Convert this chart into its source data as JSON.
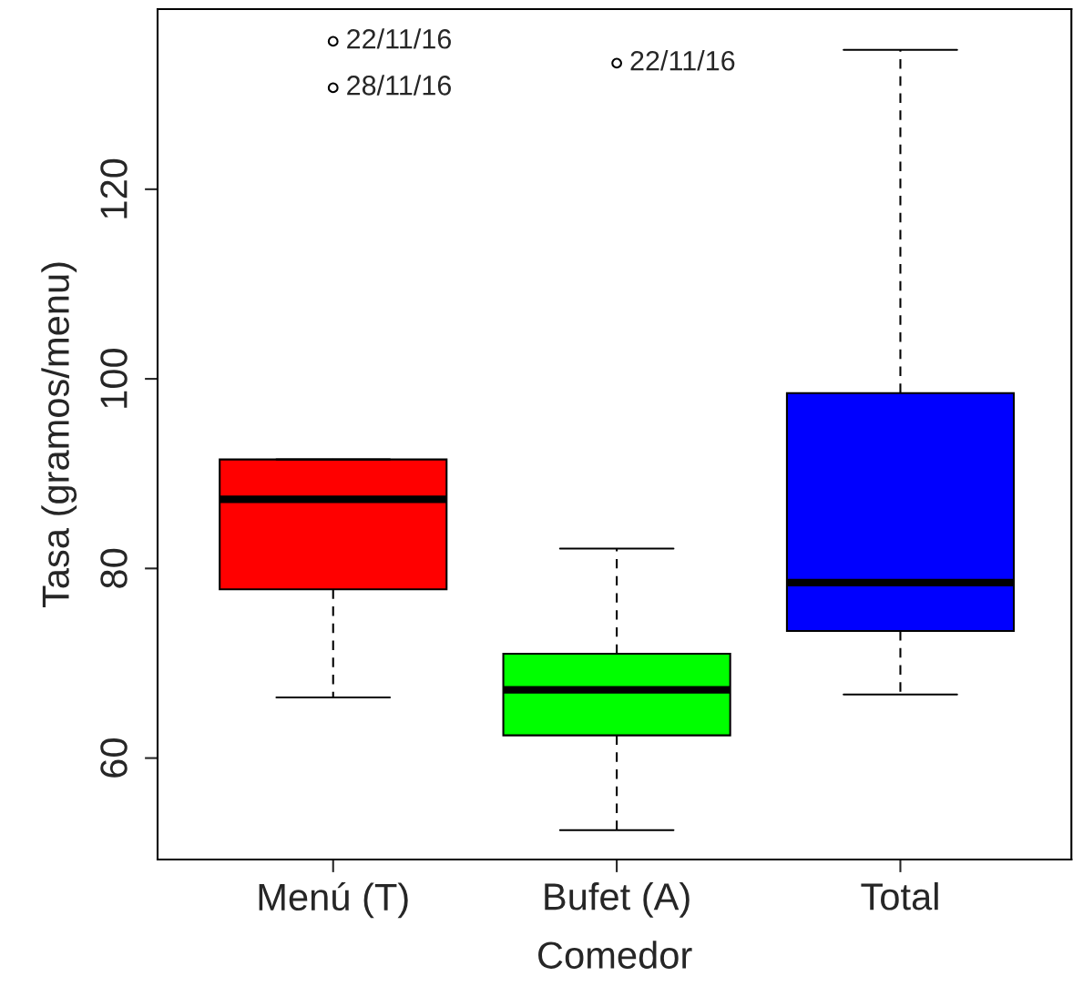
{
  "chart_data": {
    "type": "box",
    "xlabel": "Comedor",
    "ylabel": "Tasa (gramos/menu)",
    "categories": [
      "Menú (T)",
      "Bufet (A)",
      "Total"
    ],
    "colors": [
      "#ff0000",
      "#00ff00",
      "#0000ff"
    ],
    "boxes": [
      {
        "low": 66.4,
        "q1": 77.8,
        "median": 87.3,
        "q3": 91.5,
        "high": 91.5,
        "outliers": [
          135.6,
          130.7
        ]
      },
      {
        "low": 52.4,
        "q1": 62.4,
        "median": 67.2,
        "q3": 71.0,
        "high": 82.1,
        "outliers": [
          133.3
        ]
      },
      {
        "low": 66.7,
        "q1": 73.4,
        "median": 78.5,
        "q3": 98.5,
        "high": 134.7
      }
    ],
    "ylim": [
      49.3,
      139.0
    ],
    "yticks": [
      60,
      80,
      100,
      120
    ],
    "annotations": [
      "22/11/16",
      "28/11/16",
      "22/11/16"
    ]
  }
}
